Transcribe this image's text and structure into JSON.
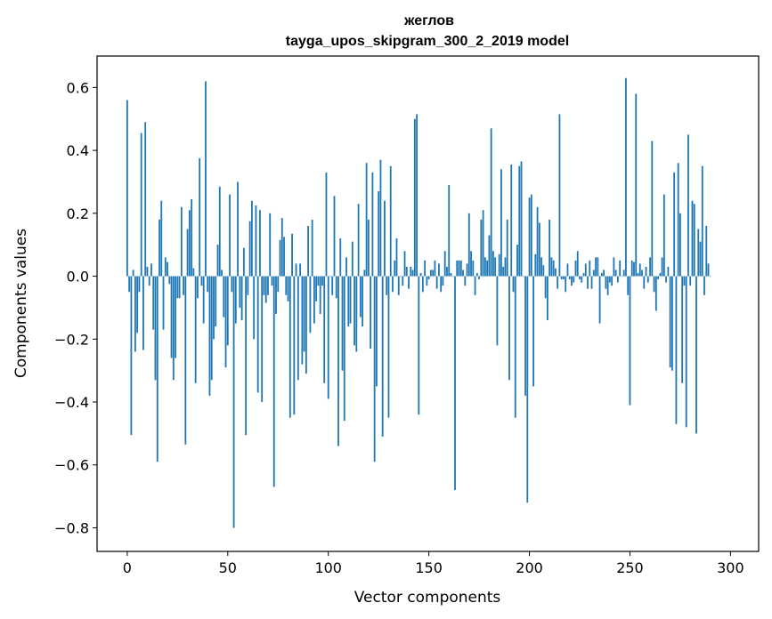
{
  "chart_data": {
    "type": "bar",
    "title": "жеглов",
    "subtitle": "tayga_upos_skipgram_300_2_2019 model",
    "xlabel": "Vector components",
    "ylabel": "Components values",
    "xlim": [
      -15,
      314
    ],
    "ylim": [
      -0.875,
      0.7
    ],
    "xticks": [
      0,
      50,
      100,
      150,
      200,
      250,
      300
    ],
    "yticks": [
      -0.8,
      -0.6,
      -0.4,
      -0.2,
      0.0,
      0.2,
      0.4,
      0.6
    ],
    "ytick_labels": [
      "−0.8",
      "−0.6",
      "−0.4",
      "−0.2",
      "0.0",
      "0.2",
      "0.4",
      "0.6"
    ],
    "grid": false,
    "bar_color": "#1f77b4",
    "values": [
      0.56,
      -0.05,
      -0.505,
      0.02,
      -0.24,
      -0.18,
      -0.05,
      0.455,
      -0.235,
      0.49,
      0.03,
      -0.03,
      0.04,
      -0.17,
      -0.33,
      -0.59,
      0.18,
      0.24,
      -0.17,
      0.06,
      0.045,
      -0.025,
      -0.26,
      -0.33,
      -0.26,
      -0.07,
      -0.07,
      0.22,
      -0.06,
      -0.535,
      0.15,
      0.21,
      0.245,
      0.025,
      -0.34,
      -0.07,
      0.375,
      -0.03,
      -0.15,
      0.62,
      -0.05,
      -0.38,
      -0.33,
      -0.2,
      -0.16,
      0.1,
      0.285,
      0.02,
      -0.13,
      -0.29,
      -0.22,
      0.26,
      -0.05,
      -0.8,
      -0.15,
      0.3,
      -0.1,
      -0.14,
      0.09,
      -0.505,
      -0.06,
      0.175,
      0.24,
      -0.2,
      0.225,
      -0.37,
      0.21,
      -0.4,
      -0.06,
      -0.085,
      -0.06,
      0.2,
      -0.03,
      -0.67,
      -0.12,
      -0.05,
      0.115,
      0.185,
      0.125,
      -0.06,
      -0.08,
      -0.45,
      0.135,
      -0.44,
      0.04,
      -0.33,
      0.04,
      -0.28,
      -0.24,
      -0.31,
      0.16,
      -0.18,
      0.18,
      -0.15,
      -0.08,
      -0.03,
      -0.12,
      -0.03,
      -0.34,
      0.33,
      -0.39,
      0.0,
      -0.06,
      0.255,
      -0.07,
      -0.54,
      0.12,
      -0.3,
      -0.46,
      0.06,
      -0.16,
      -0.15,
      0.11,
      -0.22,
      -0.24,
      0.23,
      -0.13,
      -0.16,
      0.02,
      0.36,
      0.18,
      -0.23,
      0.33,
      -0.59,
      -0.35,
      0.27,
      0.37,
      -0.51,
      0.24,
      -0.06,
      -0.45,
      0.35,
      -0.05,
      0.05,
      0.12,
      -0.06,
      0.0,
      -0.03,
      0.08,
      0.03,
      -0.04,
      0.03,
      0.02,
      0.5,
      0.515,
      -0.44,
      0.01,
      -0.05,
      0.05,
      -0.03,
      -0.01,
      0.02,
      0.02,
      0.05,
      -0.04,
      0.04,
      -0.05,
      -0.03,
      0.08,
      0.03,
      0.29,
      0.01,
      0.0,
      -0.68,
      0.05,
      0.05,
      0.05,
      0.02,
      -0.03,
      0.04,
      0.2,
      0.08,
      0.05,
      -0.06,
      0.01,
      -0.01,
      0.18,
      0.21,
      0.06,
      0.05,
      0.13,
      0.47,
      0.08,
      0.06,
      -0.22,
      0.07,
      0.34,
      0.03,
      0.06,
      0.18,
      -0.33,
      0.355,
      -0.05,
      -0.45,
      0.1,
      0.35,
      0.365,
      0.0,
      -0.38,
      -0.72,
      0.25,
      0.26,
      -0.35,
      0.07,
      0.22,
      0.17,
      0.06,
      0.035,
      -0.07,
      -0.14,
      0.18,
      0.06,
      0.05,
      0.025,
      -0.04,
      0.515,
      -0.01,
      -0.01,
      -0.05,
      0.04,
      -0.01,
      -0.03,
      -0.02,
      0.05,
      0.08,
      -0.01,
      -0.02,
      0.01,
      0.04,
      -0.04,
      0.05,
      -0.04,
      0.02,
      0.06,
      0.06,
      -0.15,
      0.01,
      0.02,
      -0.04,
      -0.06,
      -0.02,
      -0.03,
      0.06,
      0.02,
      -0.02,
      0.05,
      0.0,
      0.02,
      0.63,
      -0.06,
      -0.41,
      0.05,
      0.045,
      0.58,
      0.01,
      0.04,
      0.02,
      -0.04,
      0.03,
      -0.02,
      0.06,
      0.43,
      -0.05,
      -0.11,
      -0.01,
      0.01,
      0.06,
      0.26,
      -0.02,
      0.03,
      -0.29,
      -0.3,
      0.33,
      -0.47,
      0.36,
      0.2,
      -0.34,
      -0.03,
      -0.48,
      0.45,
      -0.03,
      0.24,
      0.23,
      -0.5,
      0.15,
      0.11,
      0.35,
      -0.06,
      0.16,
      0.04,
      0.0
    ]
  }
}
